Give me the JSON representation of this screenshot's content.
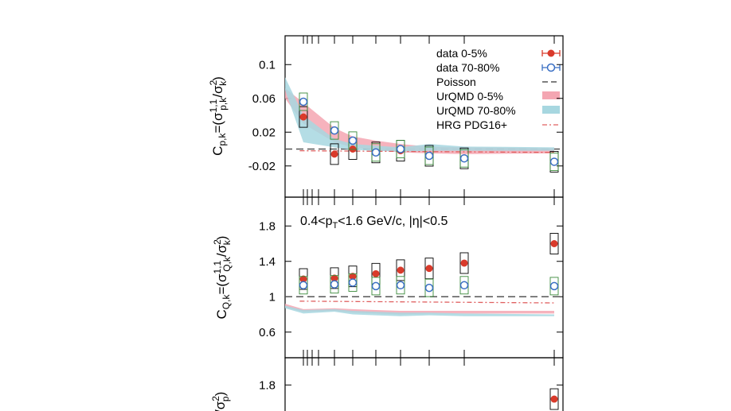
{
  "colors": {
    "data_central": "#d93a2b",
    "data_peripheral": "#3a6fc4",
    "urqmd_central": "#f4a6b2",
    "urqmd_peripheral": "#a7d7e0",
    "hrg": "#e06060",
    "syst_box": "#000000",
    "syst_box_alt": "#3a8a3a"
  },
  "legend": {
    "items": [
      {
        "label": "data 0-5%",
        "key": "data_central"
      },
      {
        "label": "data 70-80%",
        "key": "data_peripheral"
      },
      {
        "label": "Poisson",
        "key": "poisson"
      },
      {
        "label": "UrQMD 0-5%",
        "key": "urqmd_central"
      },
      {
        "label": "UrQMD 70-80%",
        "key": "urqmd_peripheral"
      },
      {
        "label": "HRG PDG16+",
        "key": "hrg"
      }
    ]
  },
  "annotation": {
    "kinematics": "0.4<pT<1.6 GeV/c, |η|<0.5"
  },
  "chart_data": [
    {
      "type": "scatter",
      "ylabel": "C_{p,k}=(σ^{1,1}_{p,k}/σ^{2}_{k})",
      "ylim": [
        -0.04,
        0.12
      ],
      "yticks": [
        "0.1",
        "0.06",
        "0.02",
        "-0.02"
      ],
      "ytick_values": [
        0.1,
        0.06,
        0.02,
        -0.02
      ],
      "poisson": 0,
      "series": [
        {
          "name": "data 0-5%",
          "x": [
            1,
            2,
            3,
            4,
            5,
            6,
            7,
            8
          ],
          "values": [
            0.038,
            -0.006,
            0.0,
            -0.004,
            -0.002,
            -0.008,
            -0.011,
            -0.015
          ]
        },
        {
          "name": "data 70-80%",
          "x": [
            1,
            2,
            3,
            4,
            5,
            6,
            7,
            8
          ],
          "values": [
            0.056,
            0.022,
            0.01,
            -0.004,
            0.0,
            -0.008,
            -0.011,
            -0.015
          ]
        },
        {
          "name": "UrQMD 0-5%",
          "x": [
            0,
            1,
            2,
            3,
            4,
            5,
            6,
            7,
            8
          ],
          "upper": [
            0.072,
            0.055,
            0.025,
            0.015,
            0.01,
            0.006,
            0.003,
            0.002,
            0.001
          ],
          "lower": [
            0.06,
            0.03,
            0.008,
            0.002,
            -0.001,
            -0.004,
            -0.005,
            -0.006,
            -0.005
          ]
        },
        {
          "name": "UrQMD 70-80%",
          "x": [
            0,
            1,
            2,
            3,
            4,
            5,
            6,
            7,
            8
          ],
          "upper": [
            0.085,
            0.04,
            0.012,
            0.006,
            0.004,
            0.002,
            0.006,
            0.003,
            0.002
          ],
          "lower": [
            0.07,
            0.008,
            0.002,
            -0.001,
            -0.002,
            -0.003,
            -0.002,
            -0.002,
            -0.002
          ]
        },
        {
          "name": "HRG PDG16+",
          "x": [
            0.8,
            8.0
          ],
          "values": [
            -0.002,
            -0.004
          ]
        }
      ]
    },
    {
      "type": "scatter",
      "ylabel": "C_{Q,k}=(σ^{1,1}_{Q,k}/σ^{2}_{k})",
      "ylim": [
        0.4,
        2.0
      ],
      "yticks": [
        "1.8",
        "1.4",
        "1",
        "0.6"
      ],
      "ytick_values": [
        1.8,
        1.4,
        1.0,
        0.6
      ],
      "poisson": 1.0,
      "series": [
        {
          "name": "data 0-5%",
          "x": [
            1,
            2,
            3,
            4,
            5,
            6,
            7,
            8
          ],
          "values": [
            1.2,
            1.21,
            1.23,
            1.26,
            1.3,
            1.32,
            1.38,
            1.6
          ]
        },
        {
          "name": "data 70-80%",
          "x": [
            1,
            2,
            3,
            4,
            5,
            6,
            7,
            8
          ],
          "values": [
            1.13,
            1.14,
            1.16,
            1.12,
            1.13,
            1.1,
            1.13,
            1.12
          ]
        },
        {
          "name": "UrQMD 0-5%",
          "x": [
            0,
            1,
            2,
            3,
            4,
            5,
            6,
            7,
            8
          ],
          "upper": [
            0.92,
            0.86,
            0.87,
            0.86,
            0.85,
            0.84,
            0.84,
            0.84,
            0.84
          ],
          "lower": [
            0.88,
            0.83,
            0.84,
            0.82,
            0.81,
            0.8,
            0.81,
            0.81,
            0.81
          ]
        },
        {
          "name": "UrQMD 70-80%",
          "x": [
            0,
            1,
            2,
            3,
            4,
            5,
            6,
            7,
            8
          ],
          "upper": [
            0.9,
            0.85,
            0.86,
            0.84,
            0.83,
            0.82,
            0.82,
            0.81,
            0.8
          ],
          "lower": [
            0.87,
            0.81,
            0.83,
            0.8,
            0.79,
            0.78,
            0.79,
            0.78,
            0.78
          ]
        },
        {
          "name": "HRG PDG16+",
          "x": [
            0.8,
            8.0
          ],
          "values": [
            0.95,
            0.93
          ]
        }
      ]
    },
    {
      "type": "scatter",
      "ylabel": "(σ^{2}_{p})",
      "ylim": [
        0.4,
        2.0
      ],
      "yticks": [
        "1.8"
      ],
      "ytick_values": [
        1.8
      ],
      "series": [
        {
          "name": "data 0-5%",
          "x": [
            8
          ],
          "values": [
            1.64
          ]
        }
      ]
    }
  ]
}
